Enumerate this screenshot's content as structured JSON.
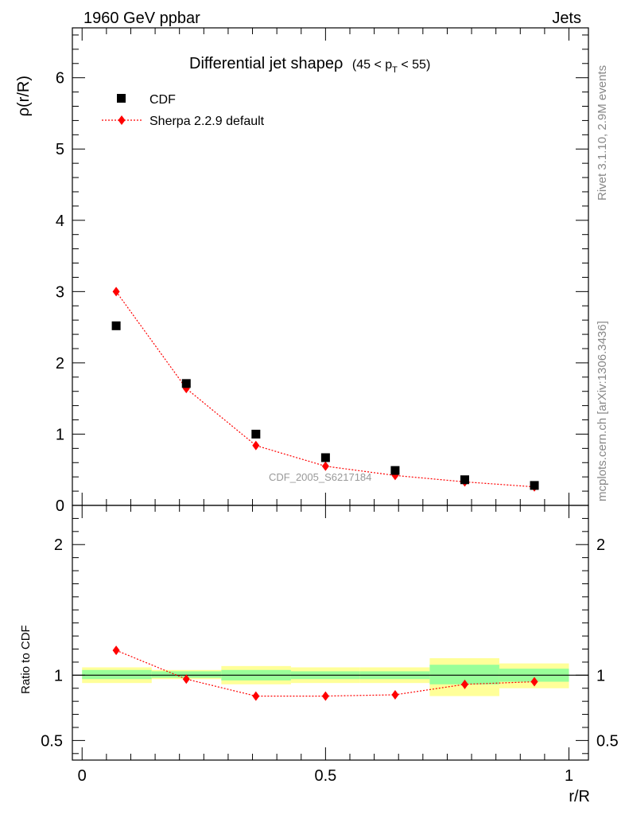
{
  "header": {
    "left": "1960 GeV ppbar",
    "right": "Jets"
  },
  "side_labels": {
    "rivet": "Rivet 3.1.10,  2.9M events",
    "mcplots": "mcplots.cern.ch [arXiv:1306.3436]"
  },
  "chart_data": [
    {
      "type": "scatter",
      "title_main": "Differential jet shapeρ",
      "title_range_pre": "(45 < p",
      "title_range_sub": "T",
      "title_range_post": " < 55)",
      "ylabel": "ρ(r/R)",
      "ylim": [
        0,
        6.7
      ],
      "yticks": [
        0,
        1,
        2,
        3,
        4,
        5,
        6
      ],
      "ytick_labels": [
        "0",
        "1",
        "2",
        "3",
        "4",
        "5",
        "6"
      ],
      "xlim": [
        -0.02,
        1.04
      ],
      "analysis_label": "CDF_2005_S6217184",
      "legend_position": "top-left",
      "series": [
        {
          "name": "CDF",
          "marker": "square",
          "color": "#000000",
          "x": [
            0.07,
            0.214,
            0.357,
            0.5,
            0.643,
            0.786,
            0.929
          ],
          "y": [
            2.52,
            1.71,
            1.0,
            0.67,
            0.49,
            0.36,
            0.28
          ]
        },
        {
          "name": "Sherpa 2.2.9 default",
          "marker": "diamond",
          "line": "dotted",
          "color": "#ff0000",
          "x": [
            0.07,
            0.214,
            0.357,
            0.5,
            0.643,
            0.786,
            0.929
          ],
          "y": [
            3.0,
            1.64,
            0.84,
            0.55,
            0.42,
            0.33,
            0.26
          ]
        }
      ]
    },
    {
      "type": "line",
      "ylabel": "Ratio to CDF",
      "xlabel": "r/R",
      "ylim": [
        0.35,
        2.3
      ],
      "xlim": [
        -0.02,
        1.04
      ],
      "yticks": [
        0.5,
        1,
        2
      ],
      "ytick_labels": [
        "0.5",
        "1",
        "2"
      ],
      "xticks": [
        0,
        0.5,
        1
      ],
      "xtick_labels": [
        "0",
        "0.5",
        "1"
      ],
      "bands": {
        "bins": [
          [
            0,
            0.143
          ],
          [
            0.143,
            0.286
          ],
          [
            0.286,
            0.429
          ],
          [
            0.429,
            0.571
          ],
          [
            0.571,
            0.714
          ],
          [
            0.714,
            0.857
          ],
          [
            0.857,
            1.0
          ]
        ],
        "inner": [
          [
            0.97,
            1.04
          ],
          [
            0.98,
            1.03
          ],
          [
            0.96,
            1.04
          ],
          [
            0.97,
            1.03
          ],
          [
            0.97,
            1.03
          ],
          [
            0.93,
            1.08
          ],
          [
            0.95,
            1.05
          ]
        ],
        "outer": [
          [
            0.94,
            1.06
          ],
          [
            0.97,
            1.04
          ],
          [
            0.93,
            1.07
          ],
          [
            0.94,
            1.06
          ],
          [
            0.94,
            1.06
          ],
          [
            0.84,
            1.13
          ],
          [
            0.9,
            1.09
          ]
        ],
        "inner_color": "#99ff99",
        "outer_color": "#ffff99"
      },
      "series": [
        {
          "name": "Sherpa 2.2.9 default",
          "marker": "diamond",
          "line": "dotted",
          "color": "#ff0000",
          "x": [
            0.07,
            0.214,
            0.357,
            0.5,
            0.643,
            0.786,
            0.929
          ],
          "y": [
            1.19,
            0.97,
            0.84,
            0.84,
            0.85,
            0.93,
            0.95
          ]
        }
      ]
    }
  ]
}
